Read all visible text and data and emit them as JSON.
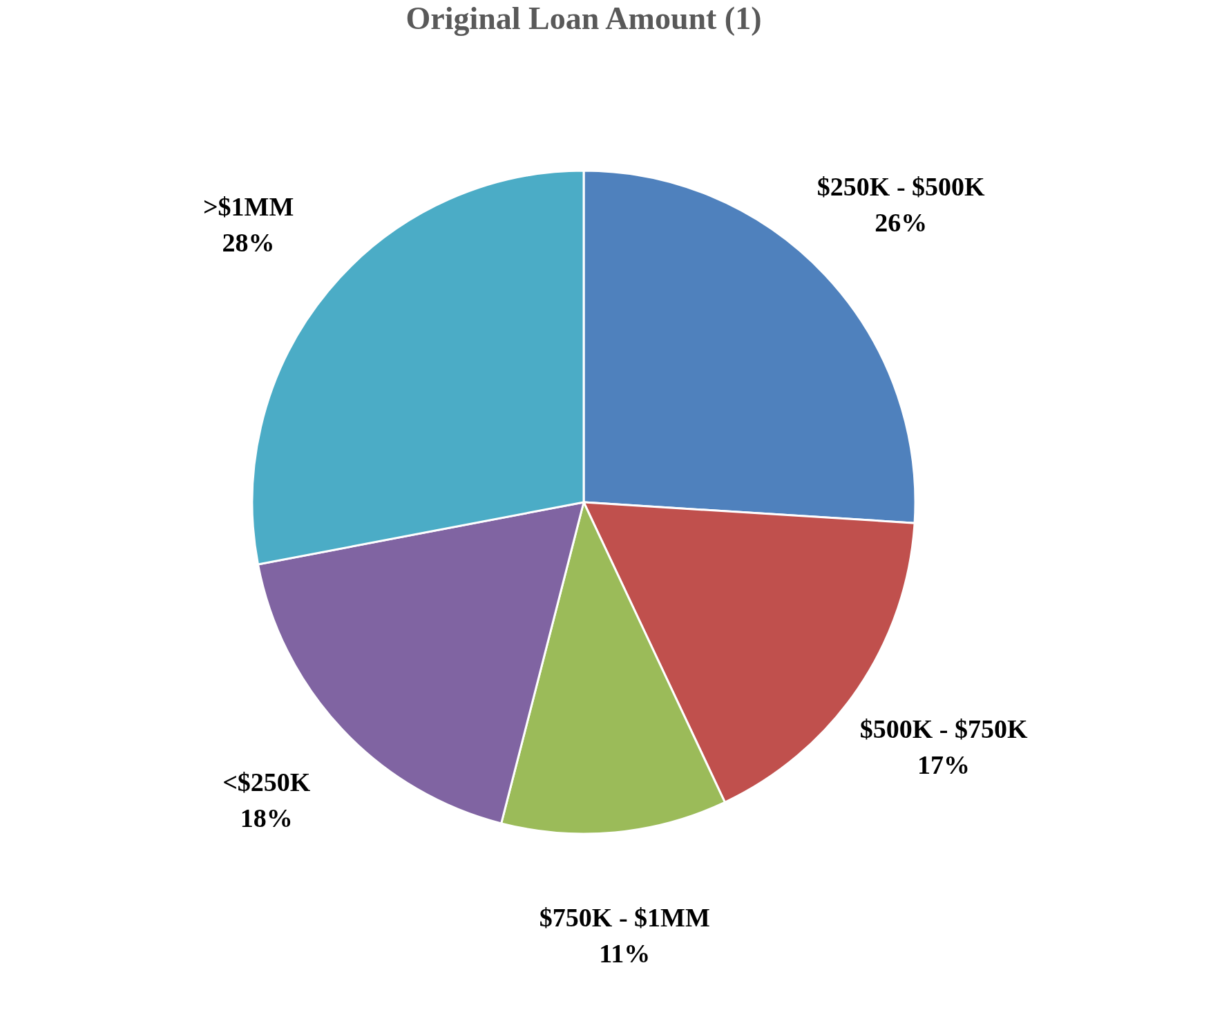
{
  "chart_data": {
    "type": "pie",
    "title": "Original Loan Amount (1)",
    "categories": [
      "$250K - $500K",
      "$500K - $750K",
      "$750K - $1MM",
      "<$250K",
      ">$1MM"
    ],
    "values": [
      26,
      17,
      11,
      18,
      28
    ],
    "value_labels": [
      "26%",
      "17%",
      "11%",
      "18%",
      "28%"
    ],
    "colors": [
      "#4f81bd",
      "#c0504d",
      "#9bbb59",
      "#8064a2",
      "#4bacc6"
    ],
    "legend": false
  }
}
